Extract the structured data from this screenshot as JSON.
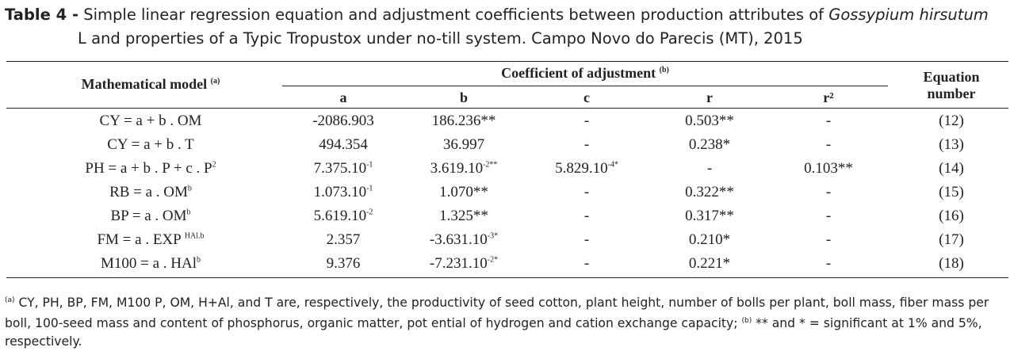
{
  "caption": {
    "label": "Table 4 -",
    "line1_pre": " Simple linear regression equation and adjustment coefficients between production attributes of ",
    "species": "Gossypium hirsutum",
    "line2": "L and properties of a Typic Tropustox under no-till system. Campo Novo do Parecis (MT), 2015"
  },
  "header": {
    "model": "Mathematical model",
    "model_sup": "(a)",
    "coef": "Coefficient of adjustment",
    "coef_sup": "(b)",
    "eq_line1": "Equation",
    "eq_line2": "number",
    "cols": [
      "a",
      "b",
      "c",
      "r",
      "r²"
    ]
  },
  "rows": [
    {
      "model": "CY = a + b . OM",
      "a": "-2086.903",
      "b": "186.236**",
      "c": "-",
      "r": "0.503**",
      "r2": "-",
      "eq": "(12)"
    },
    {
      "model": "CY = a + b . T",
      "a": "494.354",
      "b": "36.997",
      "c": "-",
      "r": "0.238*",
      "r2": "-",
      "eq": "(13)"
    },
    {
      "model": "PH = a + b . P + c . P",
      "model_sup": "2",
      "a": "7.375.10",
      "a_sup": "-1",
      "b": "3.619.10",
      "b_sup": "-2**",
      "c": "5.829.10",
      "c_sup": "-4*",
      "r": "-",
      "r2": "0.103**",
      "eq": "(14)"
    },
    {
      "model": "RB = a . OM",
      "model_sup": "b",
      "a": "1.073.10",
      "a_sup": "-1",
      "b": "1.070**",
      "c": "-",
      "r": "0.322**",
      "r2": "-",
      "eq": "(15)"
    },
    {
      "model": "BP = a . OM",
      "model_sup": "b",
      "a": "5.619.10",
      "a_sup": "-2",
      "b": "1.325**",
      "c": "-",
      "r": "0.317**",
      "r2": "-",
      "eq": "(16)"
    },
    {
      "model": "FM = a . EXP ",
      "model_sup": "HAl.b",
      "a": "2.357",
      "b": "-3.631.10",
      "b_sup": "-3*",
      "c": "-",
      "r": "0.210*",
      "r2": "-",
      "eq": "(17)"
    },
    {
      "model": "M100 = a . HAl",
      "model_sup": "b",
      "a": "9.376",
      "b": "-7.231.10",
      "b_sup": "-2*",
      "c": "-",
      "r": "0.221*",
      "r2": "-",
      "eq": "(18)"
    }
  ],
  "footnote": {
    "a_mark": "(a)",
    "a_text": " CY, PH, BP, FM, M100 P, OM, H+Al, and T are, respectively, the productivity of seed cotton, plant height, number of bolls per plant, boll mass, fiber mass per boll, 100-seed mass and content of phosphorus, organic matter, pot ential of hydrogen and cation exchange capacity; ",
    "b_mark": "(b)",
    "b_text": " ** and * = significant at 1% and 5%, respectively."
  }
}
